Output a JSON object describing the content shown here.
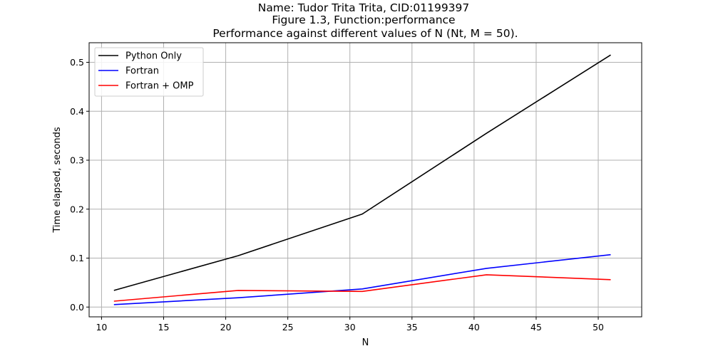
{
  "chart_data": {
    "type": "line",
    "title_lines": [
      "Name: Tudor Trita Trita, CID:01199397",
      "Figure 1.3, Function:performance",
      " Performance against different values of N (Nt, M = 50)."
    ],
    "xlabel": "N",
    "ylabel": "Time elapsed, seconds",
    "xlim": [
      9,
      53.5
    ],
    "ylim": [
      -0.02,
      0.54
    ],
    "xticks": [
      10,
      15,
      20,
      25,
      30,
      35,
      40,
      45,
      50
    ],
    "yticks": [
      0.0,
      0.1,
      0.2,
      0.3,
      0.4,
      0.5
    ],
    "xtick_labels": [
      "10",
      "15",
      "20",
      "25",
      "30",
      "35",
      "40",
      "45",
      "50"
    ],
    "ytick_labels": [
      "0.0",
      "0.1",
      "0.2",
      "0.3",
      "0.4",
      "0.5"
    ],
    "grid": true,
    "legend_position": "upper-left",
    "x": [
      11,
      21,
      31,
      41,
      51
    ],
    "series": [
      {
        "name": "Python Only",
        "color": "#000000",
        "values": [
          0.034,
          0.105,
          0.19,
          0.355,
          0.515
        ]
      },
      {
        "name": "Fortran",
        "color": "#0000ff",
        "values": [
          0.005,
          0.019,
          0.037,
          0.079,
          0.107
        ]
      },
      {
        "name": "Fortran + OMP",
        "color": "#ff0000",
        "values": [
          0.012,
          0.034,
          0.032,
          0.066,
          0.056
        ]
      }
    ]
  }
}
